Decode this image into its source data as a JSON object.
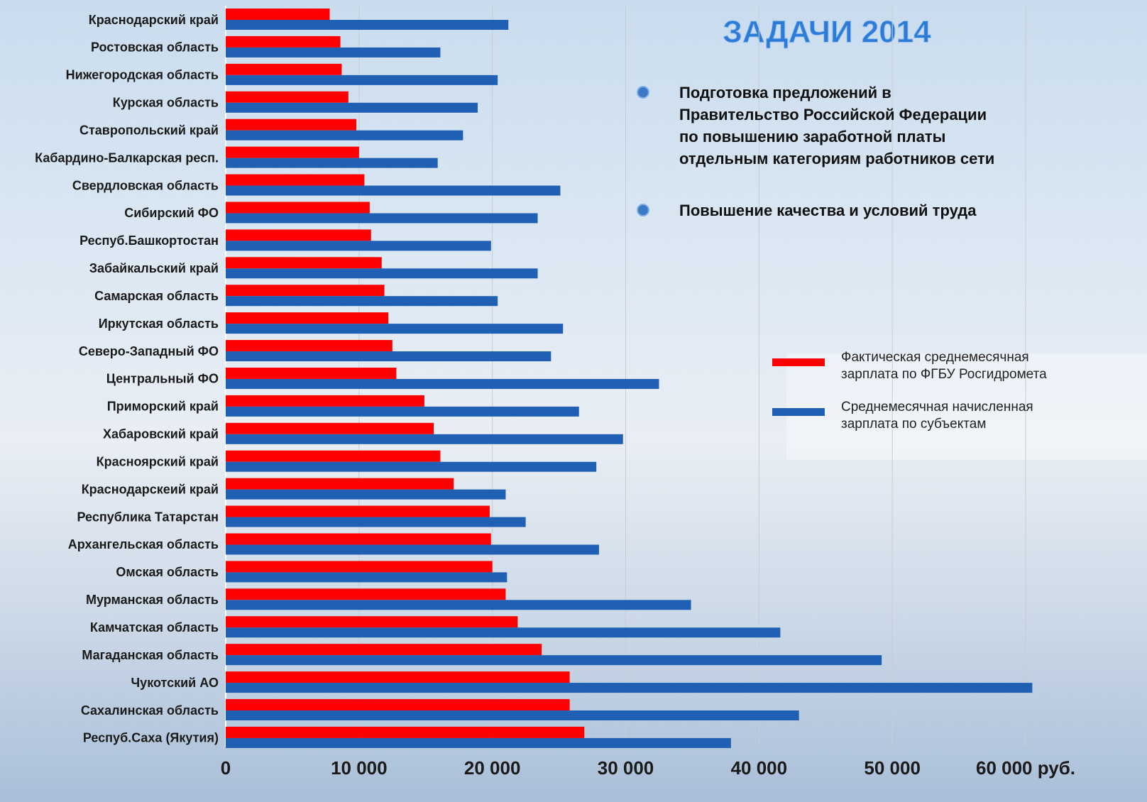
{
  "chart_data": {
    "type": "barh",
    "categories": [
      "Краснодарский край",
      "Ростовская область",
      "Нижегородская область",
      "Курская область",
      "Ставропольский край",
      "Кабардино-Балкарская респ.",
      "Свердловская область",
      "Сибирский ФО",
      "Респуб.Башкортостан",
      "Забайкальский край",
      "Самарская область",
      "Иркутская область",
      "Северо-Западный ФО",
      "Центральный ФО",
      "Приморский край",
      "Хабаровский край",
      "Красноярский край",
      "Краснодарскеий край",
      "Республика Татарстан",
      "Архангельская область",
      "Омская область",
      "Мурманская область",
      "Камчатская область",
      "Магаданская область",
      "Чукотский АО",
      "Сахалинская область",
      "Респуб.Саха (Якутия)"
    ],
    "series": [
      {
        "name": "Фактическая среднемесячная зарплата по ФГБУ Росгидромета",
        "color": "#ff0000",
        "values": [
          7800,
          8600,
          8700,
          9200,
          9800,
          10000,
          10400,
          10800,
          10900,
          11700,
          11900,
          12200,
          12500,
          12800,
          14900,
          15600,
          16100,
          17100,
          19800,
          19900,
          20000,
          21000,
          21900,
          23700,
          25800,
          25800,
          26900
        ]
      },
      {
        "name": "Среднемесячная начисленная зарплата по субъектам",
        "color": "#1f5fb4",
        "values": [
          21200,
          16100,
          20400,
          18900,
          17800,
          15900,
          25100,
          23400,
          19900,
          23400,
          20400,
          25300,
          24400,
          32500,
          26500,
          29800,
          27800,
          21000,
          22500,
          28000,
          21100,
          34900,
          41600,
          49200,
          60500,
          43000,
          37900
        ]
      }
    ],
    "xlim": [
      0,
      60000
    ],
    "xticks": [
      0,
      {
        "value": 10000,
        "label": "10 000"
      },
      {
        "value": 20000,
        "label": "20 000"
      },
      {
        "value": 30000,
        "label": "30 000"
      },
      {
        "value": 40000,
        "label": "40 000"
      },
      {
        "value": 50000,
        "label": "50 000"
      },
      {
        "value": 60000,
        "label": "60 000 руб."
      }
    ],
    "grid": true
  },
  "header": {
    "title": "ЗАДАЧИ 2014"
  },
  "bullets": [
    {
      "lines": [
        "Подготовка  предложений  в",
        "Правительство Российской Федерации",
        "по повышению заработной платы",
        "отдельным категориям работников сети"
      ]
    },
    {
      "lines": [
        "Повышение качества  и  условий  труда"
      ]
    }
  ]
}
